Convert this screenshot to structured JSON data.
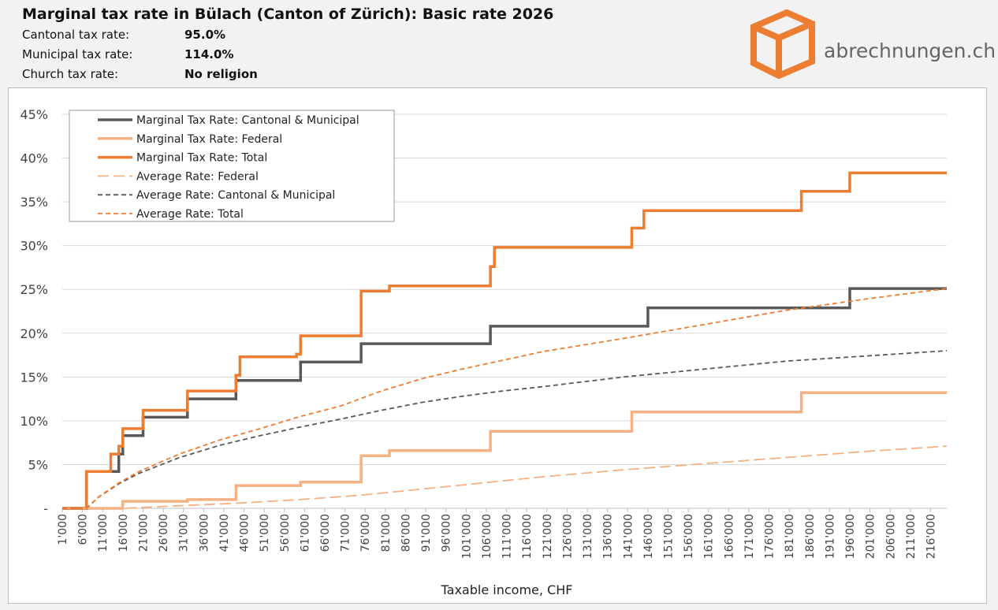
{
  "header": {
    "title": "Marginal tax rate in Bülach (Canton of Zürich): Basic rate 2026",
    "rows": [
      {
        "label": "Cantonal tax rate:",
        "value": "95.0%"
      },
      {
        "label": "Municipal tax rate:",
        "value": "114.0%"
      },
      {
        "label": "Church tax rate:",
        "value": "No religion"
      }
    ]
  },
  "brand": {
    "name": "abrechnungen.ch",
    "logo_icon": "orange-cube-icon",
    "logo_color": "#ed7d31"
  },
  "chart_data": {
    "type": "line",
    "xlabel": "Taxable income, CHF",
    "ylabel": "",
    "xlim": [
      1000,
      220000
    ],
    "ylim": [
      0,
      45
    ],
    "yticks": [
      0,
      5,
      10,
      15,
      20,
      25,
      30,
      35,
      40,
      45
    ],
    "ytick_labels": [
      "-",
      "5%",
      "10%",
      "15%",
      "20%",
      "25%",
      "30%",
      "35%",
      "40%",
      "45%"
    ],
    "xtick_values": [
      1000,
      6000,
      11000,
      16000,
      21000,
      26000,
      31000,
      36000,
      41000,
      46000,
      51000,
      56000,
      61000,
      66000,
      71000,
      76000,
      81000,
      86000,
      91000,
      96000,
      101000,
      106000,
      111000,
      116000,
      121000,
      126000,
      131000,
      136000,
      141000,
      146000,
      151000,
      156000,
      161000,
      166000,
      171000,
      176000,
      181000,
      186000,
      191000,
      196000,
      201000,
      206000,
      211000,
      216000
    ],
    "xtick_labels": [
      "1'000",
      "6'000",
      "11'000",
      "16'000",
      "21'000",
      "26'000",
      "31'000",
      "36'000",
      "41'000",
      "46'000",
      "51'000",
      "56'000",
      "61'000",
      "66'000",
      "71'000",
      "76'000",
      "81'000",
      "86'000",
      "91'000",
      "96'000",
      "101'000",
      "106'000",
      "111'000",
      "116'000",
      "121'000",
      "126'000",
      "131'000",
      "136'000",
      "141'000",
      "146'000",
      "151'000",
      "156'000",
      "161'000",
      "166'000",
      "171'000",
      "176'000",
      "181'000",
      "186'000",
      "191'000",
      "196'000",
      "201'000",
      "206'000",
      "211'000",
      "216'000"
    ],
    "grid": true,
    "legend_position": "top-left",
    "series": [
      {
        "name": "Marginal Tax Rate: Cantonal & Municipal",
        "color": "#595959",
        "style": "solid",
        "width": 3.5,
        "x": [
          1000,
          7000,
          7000,
          15000,
          15000,
          16000,
          16000,
          21000,
          21000,
          32000,
          32000,
          44000,
          44000,
          60000,
          60000,
          75000,
          75000,
          107000,
          107000,
          146000,
          146000,
          196000,
          196000,
          220000
        ],
        "y": [
          0,
          0,
          4.2,
          4.2,
          6.2,
          6.2,
          8.3,
          8.3,
          10.4,
          10.4,
          12.5,
          12.5,
          14.6,
          14.6,
          16.7,
          16.7,
          18.8,
          18.8,
          20.8,
          20.8,
          22.9,
          22.9,
          25.1,
          25.1
        ]
      },
      {
        "name": "Marginal Tax Rate: Federal",
        "color": "#f4b183",
        "style": "solid",
        "width": 3.5,
        "x": [
          1000,
          16000,
          16000,
          32000,
          32000,
          44000,
          44000,
          60000,
          60000,
          75000,
          75000,
          82000,
          82000,
          107000,
          107000,
          142000,
          142000,
          184000,
          184000,
          220000
        ],
        "y": [
          0,
          0,
          0.8,
          0.8,
          1.0,
          1.0,
          2.6,
          2.6,
          3.0,
          3.0,
          6.0,
          6.0,
          6.6,
          6.6,
          8.8,
          8.8,
          11.0,
          11.0,
          13.2,
          13.2
        ]
      },
      {
        "name": "Marginal Tax Rate: Total",
        "color": "#ed7d31",
        "style": "solid",
        "width": 3.5,
        "x": [
          1000,
          7000,
          7000,
          13000,
          13000,
          15000,
          15000,
          16000,
          16000,
          21000,
          21000,
          32000,
          32000,
          44000,
          44000,
          45000,
          45000,
          59000,
          59000,
          60000,
          60000,
          75000,
          75000,
          82000,
          82000,
          107000,
          107000,
          108000,
          108000,
          142000,
          142000,
          145000,
          145000,
          184000,
          184000,
          196000,
          196000,
          220000
        ],
        "y": [
          0,
          0,
          4.2,
          4.2,
          6.2,
          6.2,
          7.1,
          7.1,
          9.1,
          9.1,
          11.2,
          11.2,
          13.4,
          13.4,
          15.2,
          15.2,
          17.3,
          17.3,
          17.6,
          17.6,
          19.7,
          19.7,
          24.8,
          24.8,
          25.4,
          25.4,
          27.6,
          27.6,
          29.8,
          29.8,
          32.0,
          32.0,
          34.0,
          34.0,
          36.2,
          36.2,
          38.3,
          38.3
        ]
      },
      {
        "name": "Average Rate: Federal",
        "color": "#f4b183",
        "style": "longdash",
        "width": 1.8,
        "x": [
          1000,
          16000,
          30000,
          45000,
          60000,
          75000,
          90000,
          105000,
          120000,
          140000,
          160000,
          180000,
          200000,
          220000
        ],
        "y": [
          0,
          0,
          0.3,
          0.6,
          1.0,
          1.5,
          2.2,
          2.9,
          3.6,
          4.4,
          5.1,
          5.8,
          6.5,
          7.1
        ]
      },
      {
        "name": "Average Rate: Cantonal & Municipal",
        "color": "#595959",
        "style": "dash",
        "width": 1.8,
        "x": [
          1000,
          7000,
          10000,
          15000,
          20000,
          30000,
          40000,
          50000,
          60000,
          70000,
          80000,
          90000,
          100000,
          110000,
          120000,
          140000,
          160000,
          180000,
          200000,
          220000
        ],
        "y": [
          0,
          0,
          1.3,
          2.8,
          4.0,
          5.8,
          7.2,
          8.3,
          9.3,
          10.2,
          11.2,
          12.1,
          12.8,
          13.4,
          13.9,
          15.0,
          15.9,
          16.8,
          17.4,
          18.0
        ]
      },
      {
        "name": "Average Rate: Total",
        "color": "#ed7d31",
        "style": "dash",
        "width": 1.8,
        "x": [
          1000,
          7000,
          10000,
          15000,
          20000,
          30000,
          40000,
          50000,
          60000,
          70000,
          80000,
          90000,
          100000,
          110000,
          120000,
          140000,
          160000,
          180000,
          200000,
          220000
        ],
        "y": [
          0,
          0,
          1.3,
          2.9,
          4.2,
          6.2,
          7.8,
          9.1,
          10.5,
          11.7,
          13.4,
          14.8,
          15.9,
          16.9,
          17.9,
          19.4,
          21.0,
          22.6,
          23.9,
          25.1
        ]
      }
    ]
  }
}
